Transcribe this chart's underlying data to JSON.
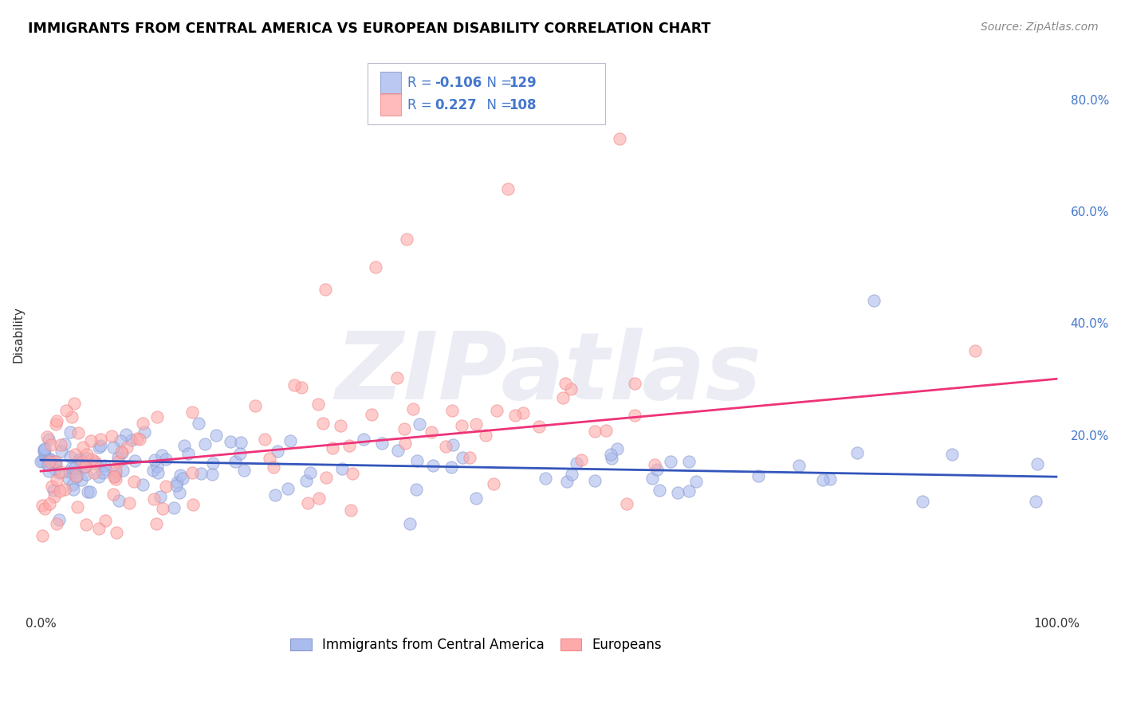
{
  "title": "IMMIGRANTS FROM CENTRAL AMERICA VS EUROPEAN DISABILITY CORRELATION CHART",
  "source": "Source: ZipAtlas.com",
  "ylabel": "Disability",
  "blue_scatter_color": "#aabbee",
  "blue_edge_color": "#8899cc",
  "pink_scatter_color": "#ffaaaa",
  "pink_edge_color": "#ee8888",
  "blue_line_color": "#3355bb",
  "pink_line_color": "#ee3377",
  "legend_text_color": "#4477cc",
  "legend_R1": "-0.106",
  "legend_N1": "129",
  "legend_R2": "0.227",
  "legend_N2": "108",
  "watermark": "ZIPatlas",
  "grid_color": "#cccccc",
  "blue_line_y0": 15.5,
  "blue_line_y1": 12.5,
  "pink_line_y0": 13.5,
  "pink_line_y1": 30.0,
  "ymin": -12,
  "ymax": 88,
  "xmin": -1,
  "xmax": 101
}
